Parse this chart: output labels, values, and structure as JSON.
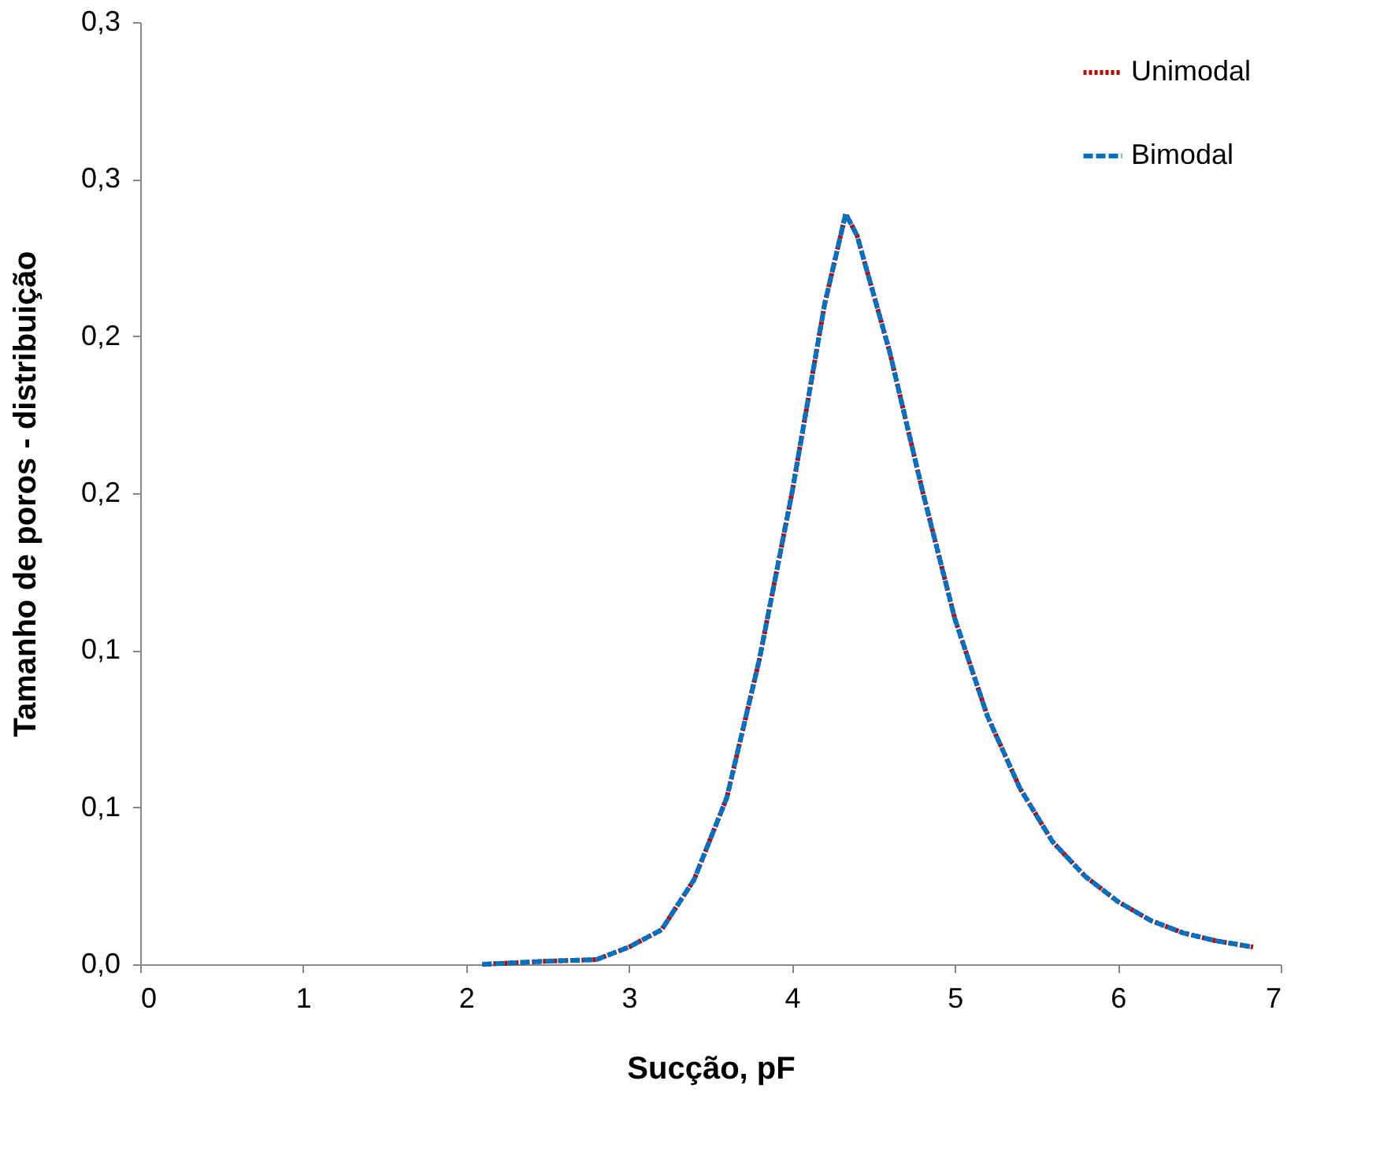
{
  "chart_data": {
    "type": "line",
    "xlabel": "Sucção, pF",
    "ylabel": "Tamanho de poros - distribuição",
    "x": [
      2.1,
      2.5,
      2.8,
      3.0,
      3.2,
      3.4,
      3.6,
      3.8,
      4.0,
      4.2,
      4.33,
      4.4,
      4.6,
      4.8,
      5.0,
      5.2,
      5.4,
      5.6,
      5.8,
      6.0,
      6.2,
      6.4,
      6.6,
      6.83
    ],
    "series": [
      {
        "name": "Unimodal",
        "color": "#c00000",
        "line_style": "dotted",
        "values": [
          0,
          0.001,
          0.0015,
          0.0055,
          0.011,
          0.027,
          0.053,
          0.097,
          0.15,
          0.21,
          0.239,
          0.232,
          0.195,
          0.151,
          0.11,
          0.079,
          0.056,
          0.039,
          0.028,
          0.02,
          0.014,
          0.01,
          0.0075,
          0.0055
        ]
      },
      {
        "name": "Bimodal",
        "color": "#0070c0",
        "line_style": "dashed",
        "values": [
          0,
          0.001,
          0.0015,
          0.0055,
          0.011,
          0.027,
          0.053,
          0.097,
          0.15,
          0.21,
          0.239,
          0.232,
          0.195,
          0.151,
          0.11,
          0.079,
          0.056,
          0.039,
          0.028,
          0.02,
          0.014,
          0.01,
          0.0075,
          0.0055
        ]
      }
    ],
    "xlim": [
      0,
      7
    ],
    "xticks": [
      0,
      1,
      2,
      3,
      4,
      5,
      6,
      7
    ],
    "ylim": [
      0,
      0.3
    ],
    "yticks": [
      {
        "value": 0,
        "label": "0,0"
      },
      {
        "value": 0.05,
        "label": "0,1"
      },
      {
        "value": 0.1,
        "label": "0,1"
      },
      {
        "value": 0.15,
        "label": "0,2"
      },
      {
        "value": 0.2,
        "label": "0,2"
      },
      {
        "value": 0.25,
        "label": "0,3"
      },
      {
        "value": 0.3,
        "label": "0,3"
      }
    ],
    "legend": "top right",
    "grid": false,
    "marker": "none"
  }
}
